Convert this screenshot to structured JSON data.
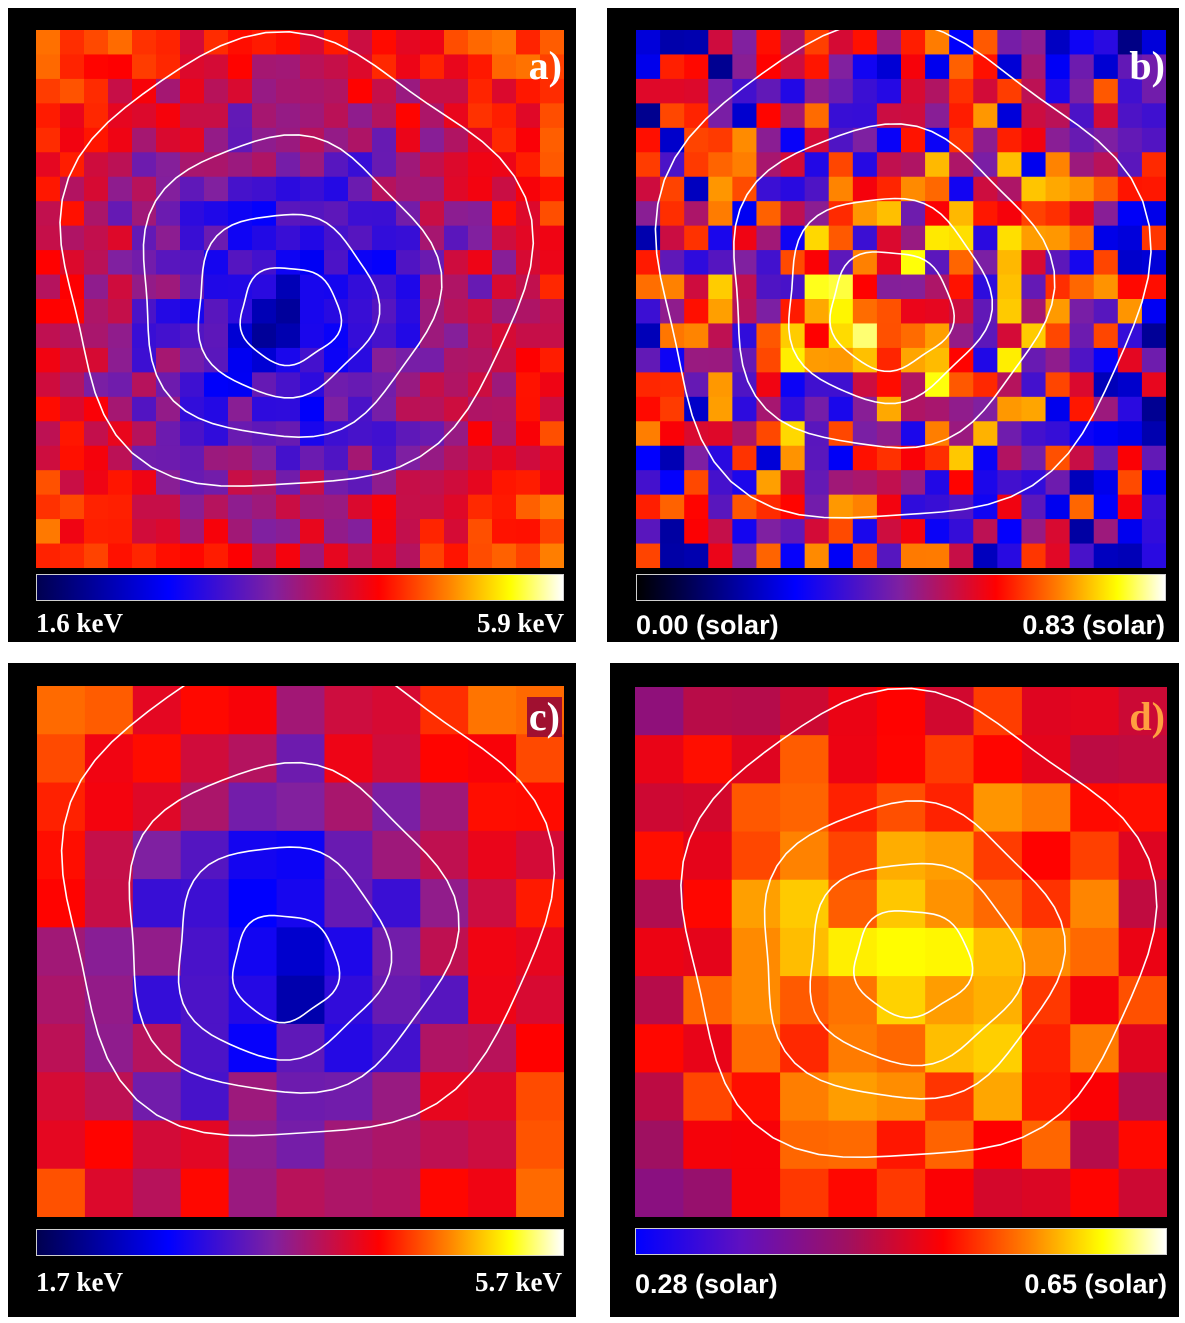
{
  "panels": [
    {
      "id": "a",
      "label": "a)",
      "min_label": "1.6 keV",
      "max_label": "5.9 keV"
    },
    {
      "id": "b",
      "label": "b)",
      "min_label": "0.00 (solar)",
      "max_label": "0.83 (solar)"
    },
    {
      "id": "c",
      "label": "c)",
      "min_label": "1.7 keV",
      "max_label": "5.7 keV"
    },
    {
      "id": "d",
      "label": "d)",
      "min_label": "0.28 (solar)",
      "max_label": "0.65 (solar)"
    }
  ],
  "colors": {
    "panel_background": "#000000",
    "contour": "#ffffff",
    "label_a": "#ffffff",
    "label_b": "#ffffff",
    "label_c": "#ffffff",
    "label_c_background": "#a01030",
    "label_d": "#ffa040",
    "colormap_temperature": [
      "#000050",
      "#0000ff",
      "#8020a0",
      "#ff0000",
      "#ff8000",
      "#ffff00",
      "#ffffff"
    ],
    "colormap_abundance_b": [
      "#000000",
      "#000080",
      "#0000ff",
      "#8020a0",
      "#ff0000",
      "#ff8000",
      "#ffff00",
      "#ffffff"
    ],
    "colormap_abundance_d": [
      "#0000ff",
      "#6010c0",
      "#a01060",
      "#ff0000",
      "#ff8000",
      "#ffff00",
      "#ffffff"
    ]
  }
}
